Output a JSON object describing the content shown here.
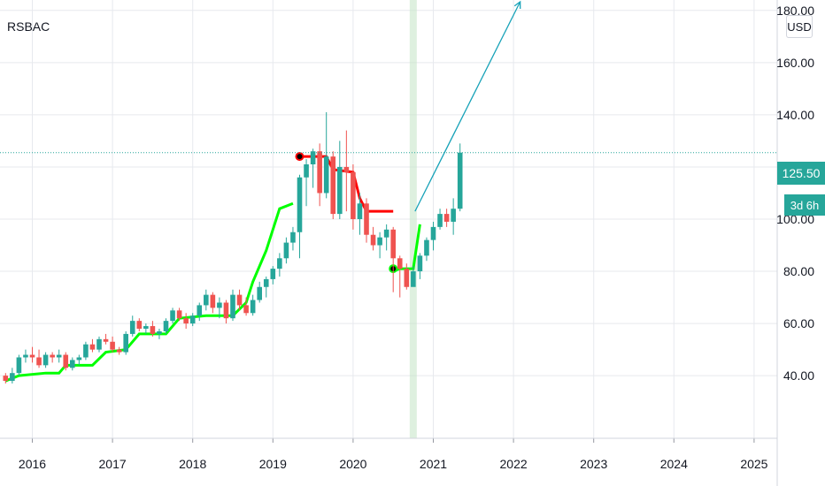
{
  "symbol": "RSBAC",
  "currency": "USD",
  "last_price_label": "125.50",
  "countdown_label": "3d 6h",
  "colors": {
    "up": "#26a69a",
    "down": "#ef5350",
    "stop_up": "#00ff00",
    "stop_down": "#ff0000",
    "projection": "#17a2b8",
    "highlight": "#c8e6c9",
    "grid": "#e7e9ee"
  },
  "chart_data": {
    "type": "candlestick",
    "interval": "monthly",
    "y_ticks": [
      "40.00",
      "60.00",
      "80.00",
      "100.00",
      "120.00",
      "140.00",
      "160.00",
      "180.00"
    ],
    "x_ticks": [
      "2016",
      "2017",
      "2018",
      "2019",
      "2020",
      "2021",
      "2022",
      "2023",
      "2024",
      "2025"
    ],
    "ylim": [
      16,
      184
    ],
    "last_price": 125.5,
    "start_month": "2015-09",
    "candles": [
      [
        40,
        41,
        37,
        38
      ],
      [
        38,
        43,
        37,
        41
      ],
      [
        41,
        48,
        40,
        47
      ],
      [
        47,
        50,
        45,
        48
      ],
      [
        48,
        51,
        45,
        47
      ],
      [
        47,
        50,
        43,
        44
      ],
      [
        44,
        49,
        43,
        48
      ],
      [
        48,
        49,
        45,
        47
      ],
      [
        47,
        50,
        45,
        48
      ],
      [
        48,
        49,
        42,
        43
      ],
      [
        43,
        47,
        42,
        46
      ],
      [
        46,
        48,
        44,
        47
      ],
      [
        47,
        53,
        46,
        52
      ],
      [
        52,
        54,
        49,
        50
      ],
      [
        50,
        55,
        49,
        54
      ],
      [
        54,
        56,
        52,
        53
      ],
      [
        53,
        55,
        49,
        50
      ],
      [
        50,
        51,
        48,
        49
      ],
      [
        49,
        57,
        48,
        56
      ],
      [
        56,
        63,
        55,
        61
      ],
      [
        61,
        62,
        57,
        58
      ],
      [
        58,
        60,
        56,
        59
      ],
      [
        59,
        61,
        55,
        56
      ],
      [
        56,
        58,
        54,
        57
      ],
      [
        57,
        62,
        56,
        61
      ],
      [
        61,
        66,
        60,
        65
      ],
      [
        65,
        66,
        61,
        62
      ],
      [
        62,
        64,
        58,
        60
      ],
      [
        60,
        64,
        59,
        63
      ],
      [
        63,
        68,
        61,
        67
      ],
      [
        67,
        73,
        65,
        71
      ],
      [
        71,
        72,
        64,
        66
      ],
      [
        66,
        70,
        62,
        68
      ],
      [
        68,
        69,
        60,
        62
      ],
      [
        62,
        73,
        61,
        71
      ],
      [
        71,
        73,
        65,
        67
      ],
      [
        67,
        70,
        63,
        64
      ],
      [
        64,
        71,
        63,
        69
      ],
      [
        69,
        76,
        68,
        74
      ],
      [
        74,
        78,
        70,
        77
      ],
      [
        77,
        82,
        75,
        81
      ],
      [
        81,
        87,
        78,
        85
      ],
      [
        85,
        93,
        83,
        91
      ],
      [
        91,
        97,
        88,
        95
      ],
      [
        95,
        117,
        85,
        116
      ],
      [
        116,
        123,
        105,
        121
      ],
      [
        121,
        127,
        112,
        126
      ],
      [
        126,
        129,
        105,
        110
      ],
      [
        110,
        141,
        108,
        124
      ],
      [
        124,
        126,
        100,
        102
      ],
      [
        102,
        130,
        100,
        120
      ],
      [
        120,
        134,
        103,
        118
      ],
      [
        118,
        121,
        96,
        100
      ],
      [
        100,
        110,
        94,
        106
      ],
      [
        106,
        108,
        91,
        94
      ],
      [
        94,
        97,
        88,
        90
      ],
      [
        90,
        95,
        85,
        93
      ],
      [
        93,
        98,
        88,
        96
      ],
      [
        96,
        97,
        72,
        85
      ],
      [
        85,
        86,
        70,
        81
      ],
      [
        81,
        83,
        73,
        74
      ],
      [
        74,
        82,
        75,
        80
      ],
      [
        80,
        87,
        77,
        86
      ],
      [
        86,
        93,
        84,
        92
      ],
      [
        92,
        99,
        88,
        97
      ],
      [
        97,
        104,
        96,
        102
      ],
      [
        102,
        104,
        97,
        99
      ],
      [
        99,
        108,
        94,
        104
      ],
      [
        104,
        129,
        103,
        125.5
      ]
    ],
    "stop_red": [
      [
        "2019-05",
        124
      ],
      [
        "2019-09",
        124
      ],
      [
        "2019-10",
        119
      ],
      [
        "2020-01",
        118
      ],
      [
        "2020-02",
        108
      ],
      [
        "2020-03",
        103
      ],
      [
        "2020-07",
        103
      ]
    ],
    "stop_green": [
      [
        "2015-09",
        38
      ],
      [
        "2015-11",
        40
      ],
      [
        "2016-03",
        41
      ],
      [
        "2016-05",
        41
      ],
      [
        "2016-06",
        44
      ],
      [
        "2016-10",
        44
      ],
      [
        "2016-12",
        49
      ],
      [
        "2017-03",
        50
      ],
      [
        "2017-05",
        56
      ],
      [
        "2017-09",
        56
      ],
      [
        "2017-11",
        62
      ],
      [
        "2018-03",
        63
      ],
      [
        "2018-07",
        63
      ],
      [
        "2018-09",
        68
      ],
      [
        "2018-10",
        76
      ],
      [
        "2018-12",
        88
      ],
      [
        "2019-02",
        104
      ],
      [
        "2019-04",
        106
      ]
    ],
    "stop_green_2": [
      [
        "2020-07",
        80
      ],
      [
        "2020-08",
        81
      ],
      [
        "2020-10",
        81
      ],
      [
        "2020-11",
        98
      ]
    ],
    "signal_red": [
      "2019-05",
      124
    ],
    "signal_green": [
      "2020-07",
      81
    ],
    "projection": [
      [
        "2020-10",
        103
      ],
      [
        "2022-02",
        184
      ]
    ],
    "highlight_month": "2020-10"
  }
}
